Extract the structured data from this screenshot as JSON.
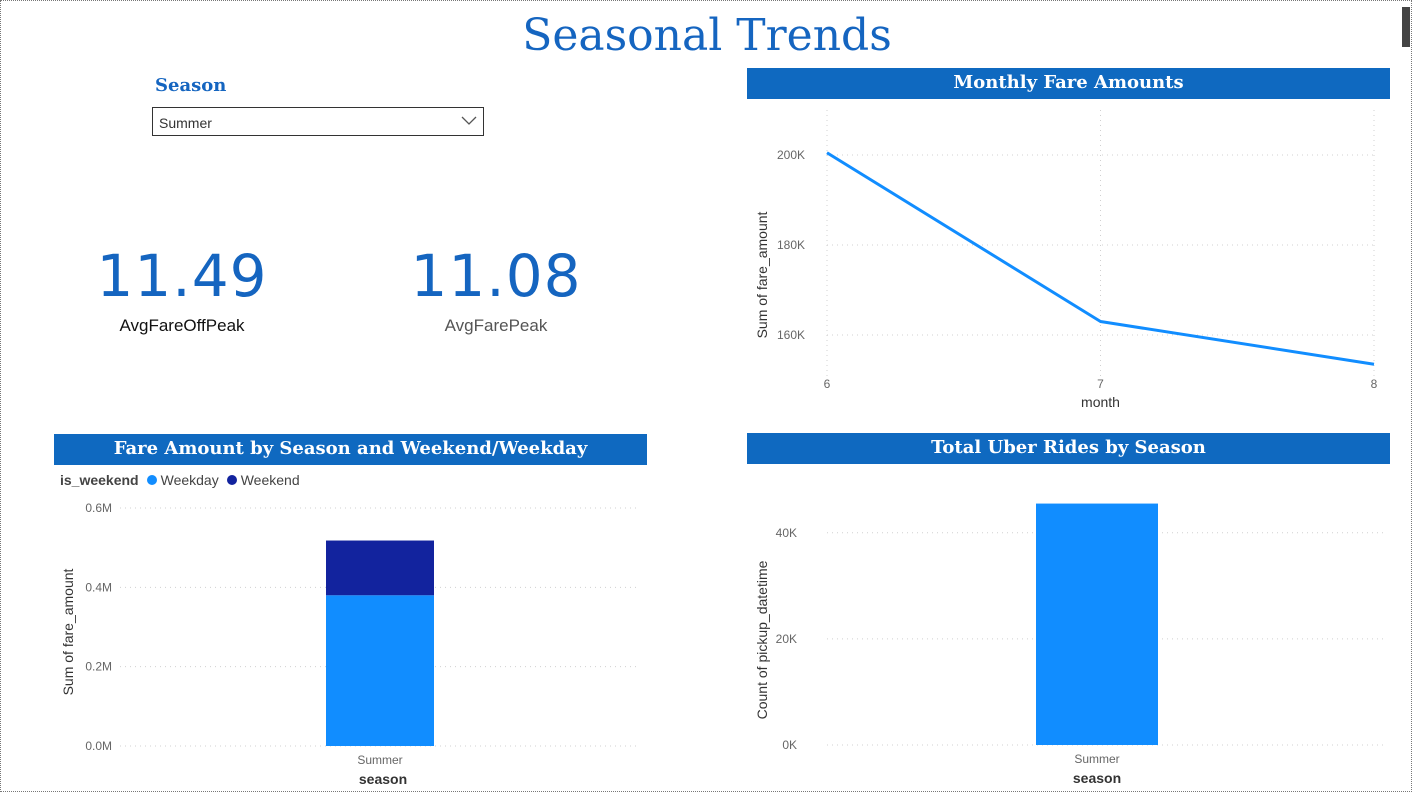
{
  "page": {
    "title": "Seasonal Trends"
  },
  "slicer": {
    "label": "Season",
    "selected": "Summer"
  },
  "kpis": [
    {
      "value": "11.49",
      "label": "AvgFareOffPeak"
    },
    {
      "value": "11.08",
      "label": "AvgFarePeak"
    }
  ],
  "colors": {
    "header_bg": "#0f69c0",
    "title": "#1565c0",
    "weekday": "#118dff",
    "weekend": "#12239e",
    "line": "#118dff"
  },
  "chart_data": [
    {
      "type": "line",
      "title": "Monthly Fare Amounts",
      "xlabel": "month",
      "ylabel": "Sum of fare_amount",
      "x": [
        6,
        7,
        8
      ],
      "x_ticks": [
        "6",
        "7",
        "8"
      ],
      "y_ticks": [
        "160K",
        "180K",
        "200K"
      ],
      "ylim": [
        150000,
        210000
      ],
      "series": [
        {
          "values": [
            200500,
            163000,
            153500
          ]
        }
      ],
      "grid": true
    },
    {
      "type": "bar",
      "stacked": true,
      "title": "Fare Amount by Season and Weekend/Weekday",
      "xlabel": "season",
      "ylabel": "Sum of fare_amount",
      "legend_title": "is_weekend",
      "categories": [
        "Summer"
      ],
      "y_ticks": [
        "0.0M",
        "0.2M",
        "0.4M",
        "0.6M"
      ],
      "ylim": [
        0,
        600000
      ],
      "series": [
        {
          "name": "Weekday",
          "values": [
            380000
          ]
        },
        {
          "name": "Weekend",
          "values": [
            138000
          ]
        }
      ],
      "legend_position": "top-left",
      "grid": true
    },
    {
      "type": "bar",
      "title": "Total Uber Rides by Season",
      "xlabel": "season",
      "ylabel": "Count of pickup_datetime",
      "categories": [
        "Summer"
      ],
      "y_ticks": [
        "0K",
        "20K",
        "40K"
      ],
      "ylim": [
        0,
        49000
      ],
      "values": [
        45500
      ],
      "grid": true
    }
  ]
}
